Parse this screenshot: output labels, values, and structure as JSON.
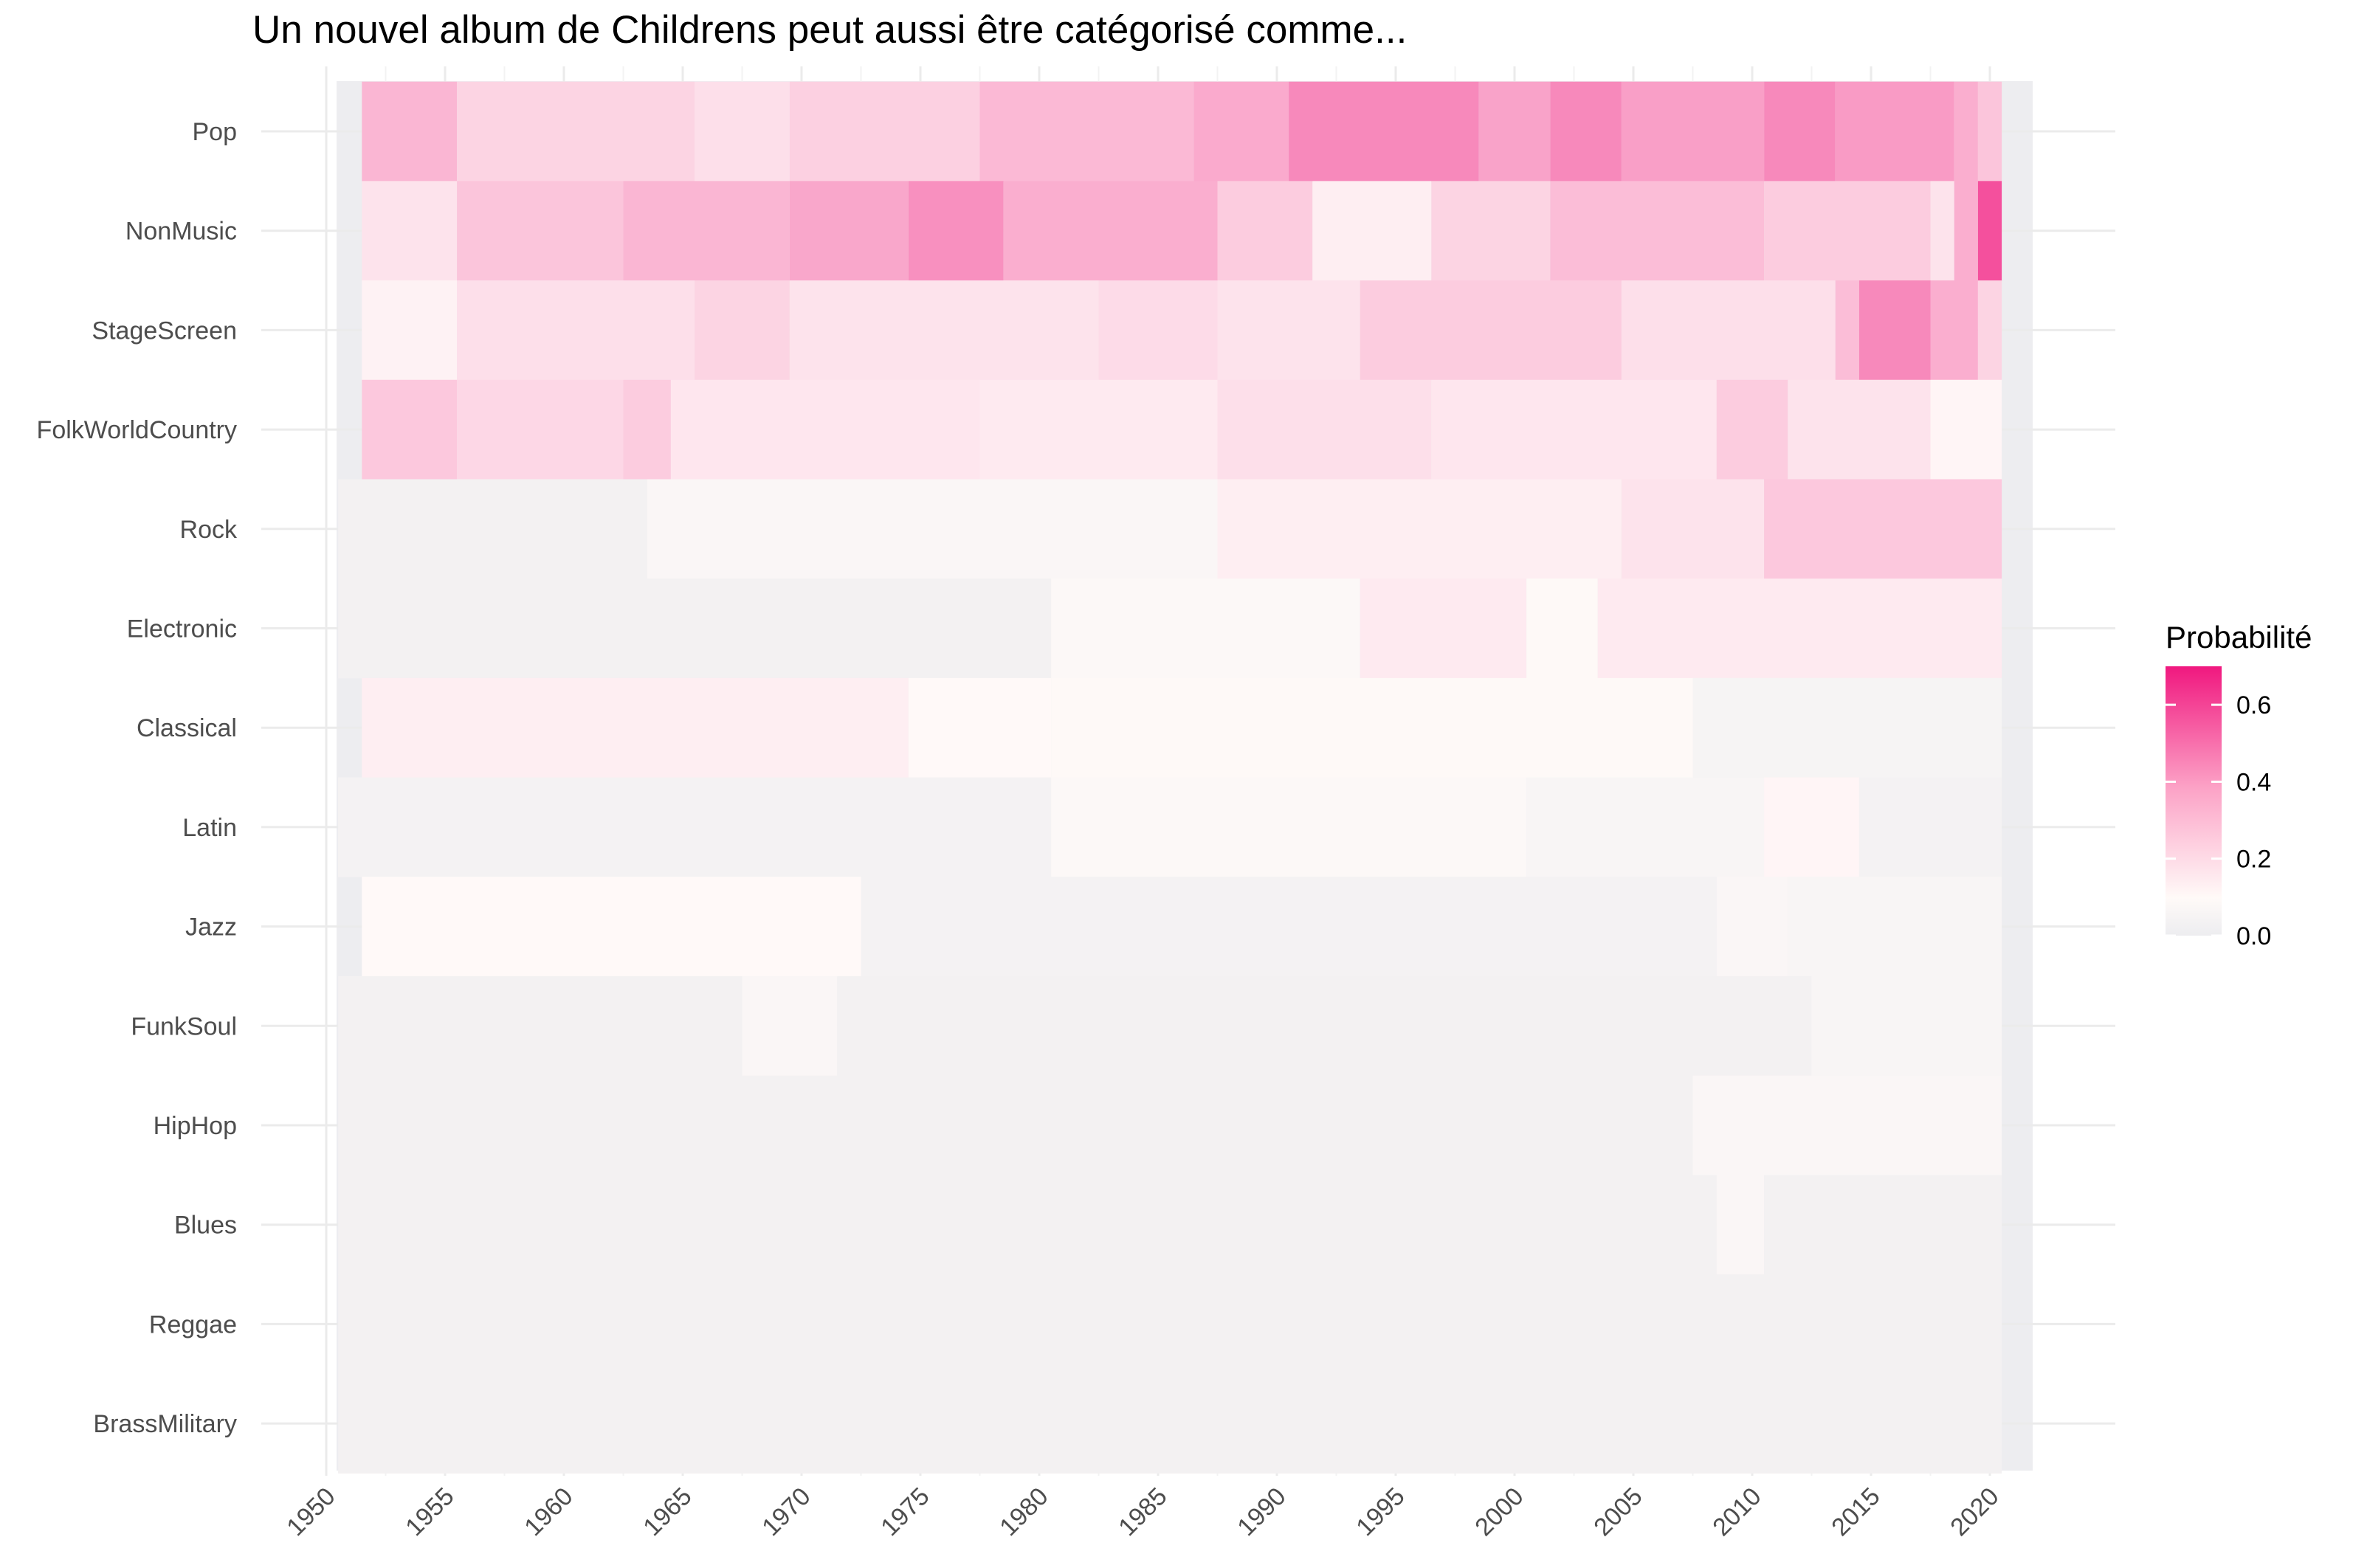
{
  "chart_data": {
    "type": "heatmap",
    "title": "Un nouvel album de Childrens  peut aussi être catégorisé comme...",
    "xlabel": "",
    "ylabel": "",
    "x_ticks": [
      1950,
      1955,
      1960,
      1965,
      1970,
      1975,
      1980,
      1985,
      1990,
      1995,
      2000,
      2005,
      2010,
      2015,
      2020
    ],
    "xlim": [
      1950,
      2020
    ],
    "categories": [
      "Pop",
      "NonMusic",
      "StageScreen",
      "FolkWorldCountry",
      "Rock",
      "Electronic",
      "Classical",
      "Latin",
      "Jazz",
      "FunkSoul",
      "HipHop",
      "Blues",
      "Reggae",
      "BrassMilitary"
    ],
    "grid": true,
    "legend": {
      "title": "Probabilité",
      "position": "right",
      "ticks": [
        "0.6",
        "0.4",
        "0.2",
        "0.0"
      ],
      "range": [
        0,
        0.7
      ],
      "colors": {
        "low": "#ededf0",
        "mid": "#fffaf8",
        "high": "#f0187f"
      }
    },
    "series": [
      {
        "name": "Pop",
        "segments": [
          {
            "from": 1952,
            "to": 1955,
            "value": 0.28
          },
          {
            "from": 1956,
            "to": 1965,
            "value": 0.2
          },
          {
            "from": 1966,
            "to": 1969,
            "value": 0.17
          },
          {
            "from": 1970,
            "to": 1977,
            "value": 0.21
          },
          {
            "from": 1978,
            "to": 1986,
            "value": 0.27
          },
          {
            "from": 1987,
            "to": 1990,
            "value": 0.31
          },
          {
            "from": 1991,
            "to": 1998,
            "value": 0.4
          },
          {
            "from": 1999,
            "to": 2001,
            "value": 0.33
          },
          {
            "from": 2002,
            "to": 2004,
            "value": 0.4
          },
          {
            "from": 2005,
            "to": 2010,
            "value": 0.34
          },
          {
            "from": 2011,
            "to": 2013,
            "value": 0.4
          },
          {
            "from": 2014,
            "to": 2018,
            "value": 0.35
          },
          {
            "from": 2019,
            "to": 2019,
            "value": 0.3
          },
          {
            "from": 2020,
            "to": 2020,
            "value": 0.24
          }
        ]
      },
      {
        "name": "NonMusic",
        "segments": [
          {
            "from": 1952,
            "to": 1955,
            "value": 0.16
          },
          {
            "from": 1956,
            "to": 1962,
            "value": 0.24
          },
          {
            "from": 1963,
            "to": 1969,
            "value": 0.28
          },
          {
            "from": 1970,
            "to": 1974,
            "value": 0.32
          },
          {
            "from": 1975,
            "to": 1978,
            "value": 0.38
          },
          {
            "from": 1979,
            "to": 1987,
            "value": 0.3
          },
          {
            "from": 1988,
            "to": 1991,
            "value": 0.22
          },
          {
            "from": 1992,
            "to": 1996,
            "value": 0.13
          },
          {
            "from": 1997,
            "to": 2001,
            "value": 0.2
          },
          {
            "from": 2002,
            "to": 2010,
            "value": 0.26
          },
          {
            "from": 2011,
            "to": 2017,
            "value": 0.22
          },
          {
            "from": 2018,
            "to": 2018,
            "value": 0.16
          },
          {
            "from": 2019,
            "to": 2019,
            "value": 0.3
          },
          {
            "from": 2020,
            "to": 2020,
            "value": 0.55
          }
        ]
      },
      {
        "name": "StageScreen",
        "segments": [
          {
            "from": 1952,
            "to": 1955,
            "value": 0.12
          },
          {
            "from": 1956,
            "to": 1965,
            "value": 0.17
          },
          {
            "from": 1966,
            "to": 1969,
            "value": 0.2
          },
          {
            "from": 1970,
            "to": 1982,
            "value": 0.16
          },
          {
            "from": 1983,
            "to": 1987,
            "value": 0.18
          },
          {
            "from": 1988,
            "to": 1993,
            "value": 0.16
          },
          {
            "from": 1994,
            "to": 2004,
            "value": 0.22
          },
          {
            "from": 2005,
            "to": 2013,
            "value": 0.17
          },
          {
            "from": 2014,
            "to": 2014,
            "value": 0.26
          },
          {
            "from": 2015,
            "to": 2017,
            "value": 0.4
          },
          {
            "from": 2018,
            "to": 2019,
            "value": 0.3
          },
          {
            "from": 2020,
            "to": 2020,
            "value": 0.2
          }
        ]
      },
      {
        "name": "FolkWorldCountry",
        "segments": [
          {
            "from": 1952,
            "to": 1955,
            "value": 0.23
          },
          {
            "from": 1956,
            "to": 1962,
            "value": 0.19
          },
          {
            "from": 1963,
            "to": 1964,
            "value": 0.22
          },
          {
            "from": 1965,
            "to": 1977,
            "value": 0.15
          },
          {
            "from": 1978,
            "to": 1987,
            "value": 0.14
          },
          {
            "from": 1988,
            "to": 1996,
            "value": 0.17
          },
          {
            "from": 1997,
            "to": 2008,
            "value": 0.15
          },
          {
            "from": 2009,
            "to": 2011,
            "value": 0.22
          },
          {
            "from": 2012,
            "to": 2017,
            "value": 0.16
          },
          {
            "from": 2018,
            "to": 2020,
            "value": 0.11
          }
        ]
      },
      {
        "name": "Rock",
        "segments": [
          {
            "from": 1951,
            "to": 1963,
            "value": 0.03
          },
          {
            "from": 1964,
            "to": 1987,
            "value": 0.07
          },
          {
            "from": 1988,
            "to": 2004,
            "value": 0.13
          },
          {
            "from": 2005,
            "to": 2010,
            "value": 0.16
          },
          {
            "from": 2011,
            "to": 2020,
            "value": 0.23
          }
        ]
      },
      {
        "name": "Electronic",
        "segments": [
          {
            "from": 1951,
            "to": 1980,
            "value": 0.03
          },
          {
            "from": 1981,
            "to": 1993,
            "value": 0.08
          },
          {
            "from": 1994,
            "to": 2000,
            "value": 0.14
          },
          {
            "from": 2001,
            "to": 2003,
            "value": 0.09
          },
          {
            "from": 2004,
            "to": 2020,
            "value": 0.14
          }
        ]
      },
      {
        "name": "Classical",
        "segments": [
          {
            "from": 1952,
            "to": 1974,
            "value": 0.13
          },
          {
            "from": 1975,
            "to": 1980,
            "value": 0.1
          },
          {
            "from": 1981,
            "to": 2007,
            "value": 0.09
          },
          {
            "from": 2008,
            "to": 2020,
            "value": 0.05
          }
        ]
      },
      {
        "name": "Latin",
        "segments": [
          {
            "from": 1951,
            "to": 1980,
            "value": 0.04
          },
          {
            "from": 1981,
            "to": 2000,
            "value": 0.08
          },
          {
            "from": 2001,
            "to": 2010,
            "value": 0.06
          },
          {
            "from": 2011,
            "to": 2014,
            "value": 0.11
          },
          {
            "from": 2015,
            "to": 2020,
            "value": 0.04
          }
        ]
      },
      {
        "name": "Jazz",
        "segments": [
          {
            "from": 1952,
            "to": 1972,
            "value": 0.1
          },
          {
            "from": 1973,
            "to": 2008,
            "value": 0.04
          },
          {
            "from": 2009,
            "to": 2011,
            "value": 0.07
          },
          {
            "from": 2012,
            "to": 2020,
            "value": 0.06
          }
        ]
      },
      {
        "name": "FunkSoul",
        "segments": [
          {
            "from": 1951,
            "to": 1967,
            "value": 0.03
          },
          {
            "from": 1968,
            "to": 1971,
            "value": 0.07
          },
          {
            "from": 1972,
            "to": 2012,
            "value": 0.03
          },
          {
            "from": 2013,
            "to": 2020,
            "value": 0.06
          }
        ]
      },
      {
        "name": "HipHop",
        "segments": [
          {
            "from": 1951,
            "to": 2007,
            "value": 0.03
          },
          {
            "from": 2008,
            "to": 2020,
            "value": 0.07
          }
        ]
      },
      {
        "name": "Blues",
        "segments": [
          {
            "from": 1951,
            "to": 2008,
            "value": 0.03
          },
          {
            "from": 2009,
            "to": 2010,
            "value": 0.07
          },
          {
            "from": 2011,
            "to": 2020,
            "value": 0.03
          }
        ]
      },
      {
        "name": "Reggae",
        "segments": [
          {
            "from": 1951,
            "to": 2020,
            "value": 0.03
          }
        ]
      },
      {
        "name": "BrassMilitary",
        "segments": [
          {
            "from": 1951,
            "to": 2020,
            "value": 0.03
          }
        ]
      }
    ]
  }
}
